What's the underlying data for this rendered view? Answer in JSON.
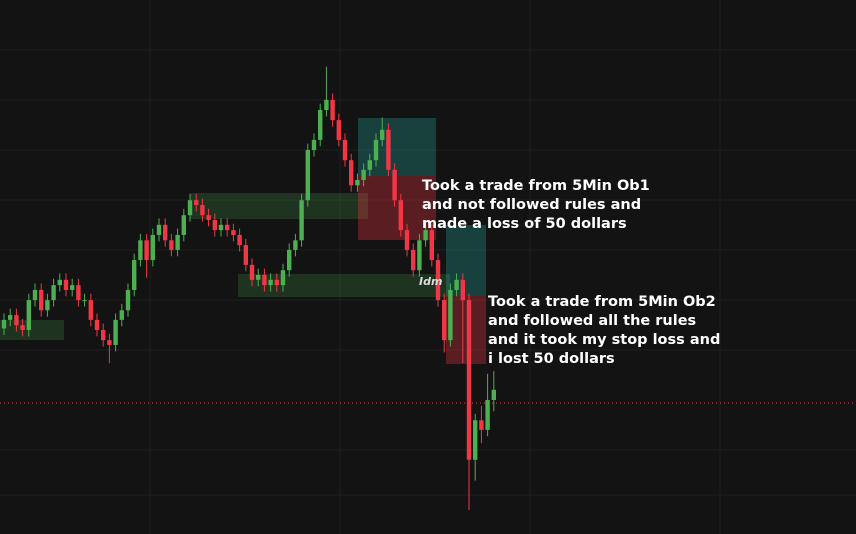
{
  "chart_data": {
    "type": "candlestick",
    "ylim": [
      0,
      100
    ],
    "up_color": "#4caf50",
    "down_color": "#f23645",
    "candles": [
      [
        38.5,
        41.3,
        37.3,
        40.1
      ],
      [
        40.1,
        42.2,
        38.9,
        41.0
      ],
      [
        41.0,
        42.2,
        37.9,
        39.1
      ],
      [
        39.1,
        40.3,
        37.0,
        38.2
      ],
      [
        38.2,
        45.0,
        37.0,
        43.8
      ],
      [
        43.8,
        46.9,
        42.6,
        45.7
      ],
      [
        45.7,
        46.9,
        40.7,
        41.9
      ],
      [
        41.9,
        45.0,
        40.7,
        43.8
      ],
      [
        43.8,
        47.8,
        42.6,
        46.6
      ],
      [
        46.6,
        48.8,
        45.4,
        47.6
      ],
      [
        47.6,
        48.8,
        44.5,
        45.7
      ],
      [
        45.7,
        47.8,
        44.5,
        46.6
      ],
      [
        46.6,
        47.8,
        42.6,
        43.8
      ],
      [
        43.8,
        45.0,
        42.6,
        43.8
      ],
      [
        43.8,
        45.0,
        38.9,
        40.1
      ],
      [
        40.1,
        41.3,
        37.0,
        38.2
      ],
      [
        38.2,
        39.4,
        35.1,
        36.3
      ],
      [
        36.3,
        37.5,
        32.0,
        35.4
      ],
      [
        35.4,
        41.3,
        34.2,
        40.1
      ],
      [
        40.1,
        43.1,
        38.9,
        41.9
      ],
      [
        41.9,
        46.9,
        40.7,
        45.7
      ],
      [
        45.7,
        52.5,
        44.5,
        51.3
      ],
      [
        51.3,
        56.2,
        50.1,
        55.0
      ],
      [
        55.0,
        56.2,
        48.0,
        51.3
      ],
      [
        51.3,
        57.2,
        50.1,
        56.0
      ],
      [
        56.0,
        59.1,
        54.8,
        57.9
      ],
      [
        57.9,
        59.1,
        53.8,
        55.0
      ],
      [
        55.0,
        56.2,
        52.0,
        53.2
      ],
      [
        53.2,
        57.2,
        52.0,
        56.0
      ],
      [
        56.0,
        60.9,
        54.8,
        59.7
      ],
      [
        59.7,
        63.7,
        58.5,
        62.5
      ],
      [
        62.5,
        63.7,
        60.4,
        61.6
      ],
      [
        61.6,
        62.8,
        58.5,
        59.7
      ],
      [
        59.7,
        60.9,
        57.6,
        58.8
      ],
      [
        58.8,
        60.0,
        55.7,
        56.9
      ],
      [
        56.9,
        59.1,
        55.7,
        57.9
      ],
      [
        57.9,
        59.1,
        55.7,
        56.9
      ],
      [
        56.9,
        58.1,
        54.8,
        56.0
      ],
      [
        56.0,
        57.2,
        52.9,
        54.1
      ],
      [
        54.1,
        55.3,
        49.2,
        50.4
      ],
      [
        50.4,
        51.6,
        46.4,
        47.6
      ],
      [
        47.6,
        49.7,
        46.4,
        48.5
      ],
      [
        48.5,
        49.7,
        45.4,
        46.6
      ],
      [
        46.6,
        48.8,
        45.4,
        47.6
      ],
      [
        47.6,
        48.8,
        45.4,
        46.6
      ],
      [
        46.6,
        50.6,
        45.4,
        49.4
      ],
      [
        49.4,
        54.4,
        48.2,
        53.2
      ],
      [
        53.2,
        56.2,
        52.0,
        55.0
      ],
      [
        55.0,
        63.7,
        53.8,
        62.5
      ],
      [
        62.5,
        73.1,
        61.3,
        71.9
      ],
      [
        71.9,
        75.0,
        70.7,
        73.8
      ],
      [
        73.8,
        80.6,
        72.6,
        79.4
      ],
      [
        79.4,
        87.5,
        78.2,
        81.3
      ],
      [
        81.3,
        82.5,
        76.3,
        77.5
      ],
      [
        77.5,
        78.7,
        72.6,
        73.8
      ],
      [
        73.8,
        75.0,
        68.8,
        70.0
      ],
      [
        70.0,
        71.2,
        64.1,
        65.3
      ],
      [
        65.3,
        67.5,
        64.1,
        66.3
      ],
      [
        66.3,
        69.4,
        65.1,
        68.2
      ],
      [
        68.2,
        71.2,
        67.0,
        70.0
      ],
      [
        70.0,
        75.0,
        68.8,
        73.8
      ],
      [
        73.8,
        78.0,
        72.6,
        75.7
      ],
      [
        75.7,
        76.9,
        67.0,
        68.2
      ],
      [
        68.2,
        69.4,
        61.3,
        62.5
      ],
      [
        62.5,
        63.7,
        55.7,
        56.9
      ],
      [
        56.9,
        58.1,
        52.0,
        53.2
      ],
      [
        53.2,
        54.4,
        48.2,
        49.4
      ],
      [
        49.4,
        56.2,
        48.2,
        55.0
      ],
      [
        55.0,
        58.1,
        53.8,
        56.9
      ],
      [
        56.9,
        58.1,
        50.1,
        51.3
      ],
      [
        51.3,
        52.5,
        42.6,
        43.8
      ],
      [
        43.8,
        45.0,
        34.0,
        36.3
      ],
      [
        36.3,
        46.9,
        35.1,
        45.7
      ],
      [
        45.7,
        48.8,
        44.5,
        47.6
      ],
      [
        47.6,
        48.8,
        32.0,
        43.8
      ],
      [
        43.8,
        45.0,
        4.5,
        13.9
      ],
      [
        13.9,
        22.5,
        10.0,
        21.3
      ],
      [
        21.3,
        24.0,
        17.0,
        19.5
      ],
      [
        19.5,
        30.0,
        18.3,
        25.1
      ],
      [
        25.1,
        30.5,
        23.0,
        27.0
      ]
    ],
    "annotations": [
      [
        "Took a trade from 5Min Ob1",
        "and not followed rules and",
        "made a loss of 50 dollars"
      ],
      [
        "Took a trade from 5Min Ob2",
        "and followed all the rules",
        "and it took my stop loss and",
        "i lost 50 dollars"
      ]
    ],
    "label": "Idm"
  }
}
